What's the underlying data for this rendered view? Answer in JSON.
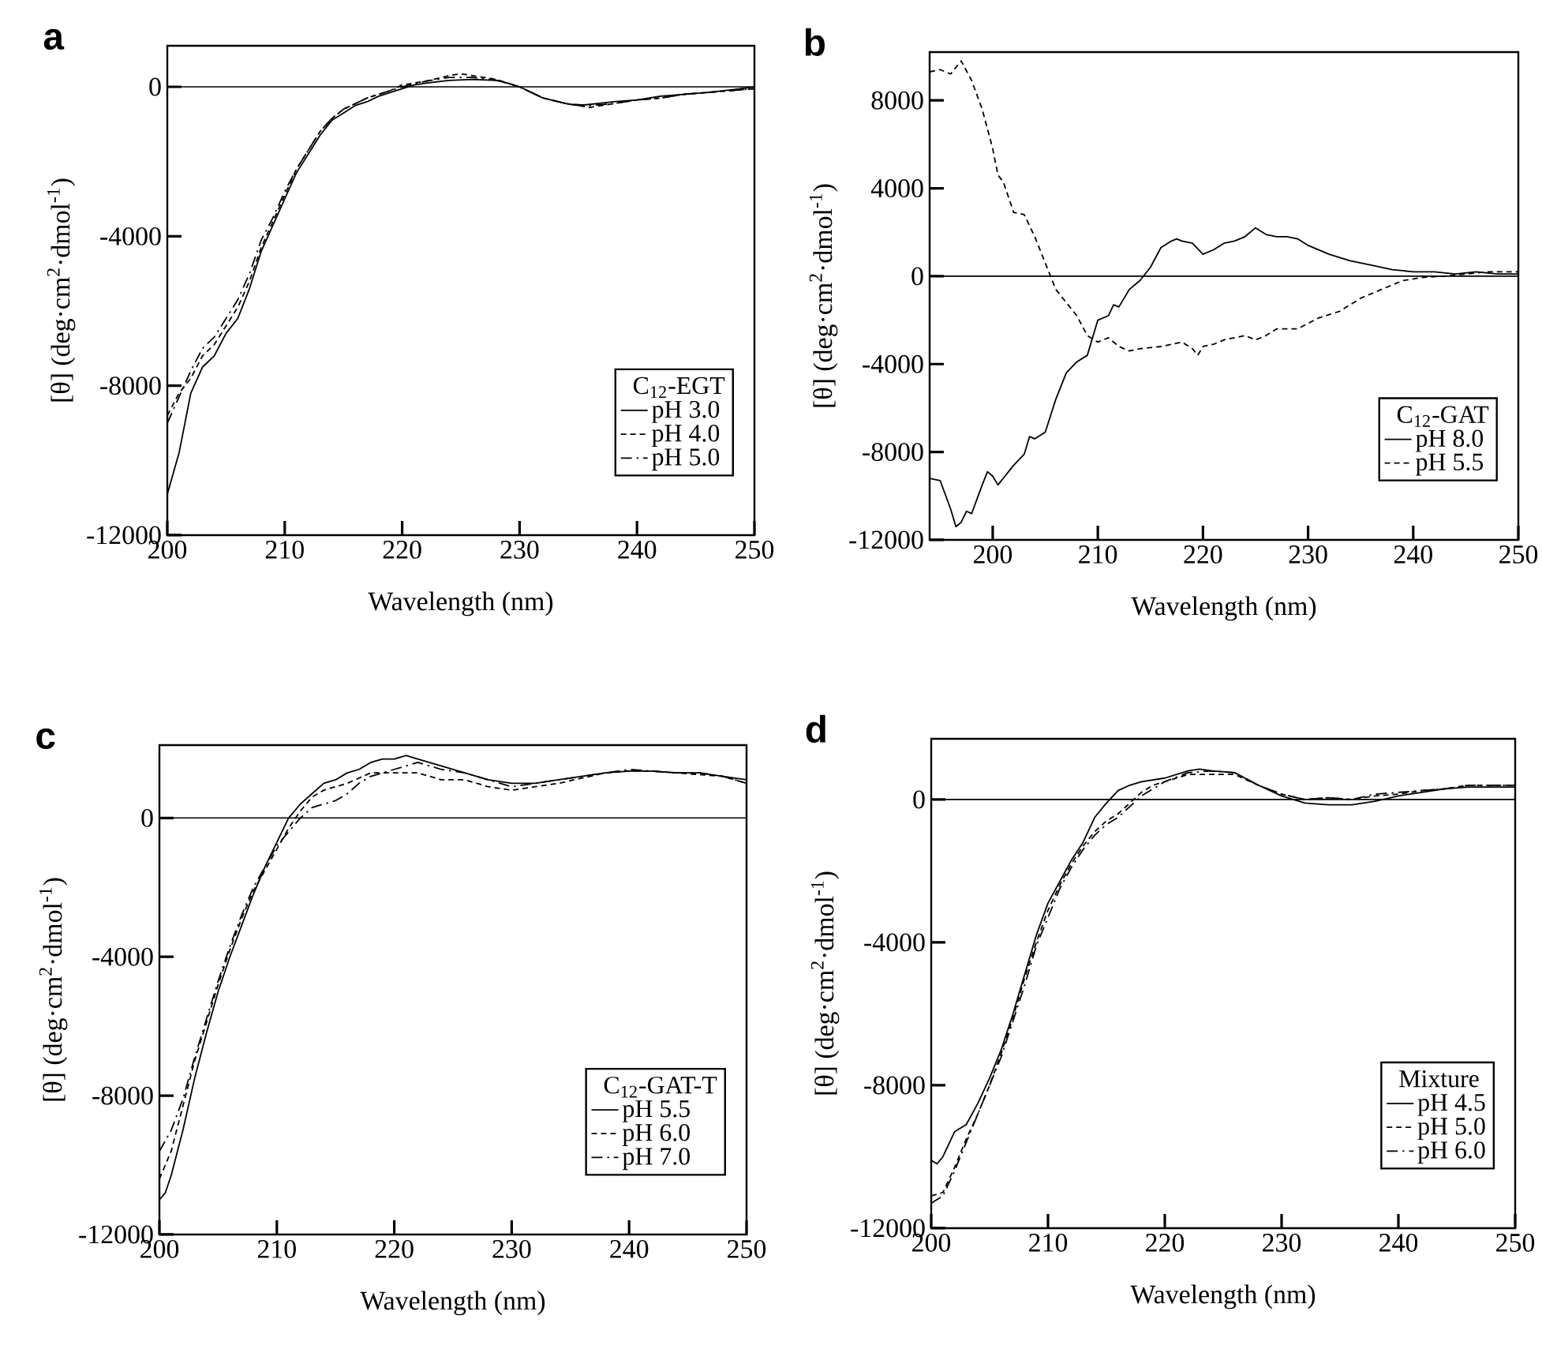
{
  "chart_data": [
    {
      "type": "line",
      "title": "a",
      "xlabel": "Wavelength (nm)",
      "ylabel": "[θ] (deg·cm$^{2}$·dmol$^{-1}$)",
      "legend_title": "C$_{12}$-EGT",
      "legend": "bottom right",
      "xlim": [
        200,
        250
      ],
      "ylim": [
        -12000,
        1100
      ],
      "xticks": [
        200,
        210,
        220,
        230,
        240,
        250
      ],
      "yticks": [
        -12000,
        -8000,
        -4000,
        0
      ],
      "ref_lines": [
        {
          "axis": "y",
          "value": 0
        }
      ],
      "series": [
        {
          "name": "pH 3.0",
          "color": "#000000",
          "line_style": "solid",
          "x": [
            200,
            201,
            202,
            203,
            204,
            205,
            206,
            207,
            208,
            209,
            210,
            211,
            212,
            213,
            214,
            215,
            216,
            217,
            218,
            219,
            220,
            221,
            222,
            224,
            226,
            228,
            229,
            230,
            231,
            232,
            234,
            235,
            236,
            238,
            240,
            242,
            244,
            246,
            248,
            250
          ],
          "values": [
            -10900,
            -9800,
            -8200,
            -7500,
            -7200,
            -6600,
            -6200,
            -5400,
            -4400,
            -3700,
            -3000,
            -2300,
            -1800,
            -1300,
            -900,
            -700,
            -500,
            -400,
            -250,
            -150,
            -50,
            50,
            100,
            170,
            200,
            170,
            100,
            0,
            -150,
            -300,
            -450,
            -500,
            -470,
            -400,
            -350,
            -250,
            -200,
            -150,
            -80,
            0
          ]
        },
        {
          "name": "pH 4.0",
          "color": "#000000",
          "line_style": "dashed",
          "x": [
            200,
            201,
            202,
            203,
            204,
            205,
            206,
            207,
            208,
            209,
            210,
            211,
            212,
            213,
            214,
            215,
            216,
            217,
            218,
            219,
            220,
            222,
            224,
            225,
            226,
            228,
            230,
            232,
            234,
            236,
            238,
            240,
            242,
            244,
            246,
            248,
            250
          ],
          "values": [
            -8800,
            -8200,
            -7800,
            -7200,
            -6900,
            -6400,
            -5900,
            -5200,
            -4300,
            -3600,
            -2900,
            -2200,
            -1700,
            -1200,
            -850,
            -600,
            -450,
            -300,
            -200,
            -100,
            50,
            150,
            300,
            350,
            300,
            200,
            0,
            -300,
            -450,
            -550,
            -450,
            -350,
            -300,
            -200,
            -150,
            -100,
            -50
          ]
        },
        {
          "name": "pH 5.0",
          "color": "#000000",
          "line_style": "dashdot",
          "x": [
            200,
            201,
            202,
            203,
            204,
            205,
            206,
            207,
            208,
            209,
            210,
            211,
            212,
            213,
            214,
            215,
            216,
            217,
            218,
            219,
            220,
            222,
            224,
            226,
            228,
            230,
            232,
            234,
            236,
            238,
            240,
            242,
            244,
            246,
            248,
            250
          ],
          "values": [
            -9000,
            -8300,
            -7600,
            -7000,
            -6700,
            -6200,
            -5700,
            -5000,
            -4100,
            -3500,
            -2800,
            -2200,
            -1700,
            -1200,
            -850,
            -600,
            -450,
            -300,
            -200,
            -100,
            0,
            150,
            250,
            250,
            180,
            0,
            -300,
            -450,
            -500,
            -450,
            -350,
            -300,
            -200,
            -150,
            -100,
            -50
          ]
        }
      ]
    },
    {
      "type": "line",
      "title": "b",
      "xlabel": "Wavelength (nm)",
      "ylabel": "[θ] (deg·cm$^{2}$·dmol$^{-1}$)",
      "legend_title": "C$_{12}$-GAT",
      "legend": "bottom right",
      "xlim": [
        194,
        250
      ],
      "ylim": [
        -12000,
        10200
      ],
      "xticks": [
        200,
        210,
        220,
        230,
        240,
        250
      ],
      "yticks": [
        -12000,
        -8000,
        -4000,
        0,
        4000,
        8000
      ],
      "ref_lines": [
        {
          "axis": "y",
          "value": 0
        }
      ],
      "series": [
        {
          "name": "pH 8.0",
          "color": "#000000",
          "line_style": "solid",
          "x": [
            194,
            195,
            196,
            196.5,
            197,
            197.5,
            198,
            199,
            199.5,
            200,
            200.5,
            201,
            202,
            203,
            203.5,
            204,
            205,
            206,
            207,
            208,
            209,
            210,
            211,
            211.5,
            212,
            213,
            214,
            215,
            216,
            217,
            217.5,
            218,
            219,
            220,
            221,
            222,
            223,
            224,
            225,
            226,
            227,
            228,
            229,
            230,
            232,
            234,
            236,
            238,
            240,
            242,
            244,
            246,
            248,
            250
          ],
          "values": [
            -9200,
            -9300,
            -10600,
            -11400,
            -11200,
            -10700,
            -10800,
            -9500,
            -8900,
            -9100,
            -9500,
            -9200,
            -8600,
            -8100,
            -7300,
            -7400,
            -7100,
            -5600,
            -4400,
            -3900,
            -3600,
            -2000,
            -1800,
            -1300,
            -1400,
            -600,
            -200,
            400,
            1300,
            1600,
            1700,
            1600,
            1500,
            1000,
            1200,
            1500,
            1600,
            1800,
            2200,
            1900,
            1800,
            1800,
            1700,
            1400,
            1000,
            700,
            500,
            300,
            200,
            200,
            100,
            200,
            100,
            100
          ]
        },
        {
          "name": "pH 5.5",
          "color": "#000000",
          "line_style": "dashed",
          "x": [
            194,
            195,
            196,
            197,
            198,
            199,
            200,
            200.5,
            201,
            202,
            203,
            204,
            205,
            206,
            207,
            208,
            209,
            210,
            211,
            212,
            213,
            214,
            216,
            218,
            219,
            219.5,
            220,
            221,
            222,
            224,
            225,
            226,
            227,
            229,
            231,
            233,
            235,
            237,
            239,
            241,
            243,
            245,
            247,
            250
          ],
          "values": [
            9300,
            9400,
            9200,
            9800,
            8900,
            7600,
            5800,
            4600,
            4300,
            2900,
            2800,
            1800,
            600,
            -600,
            -1200,
            -1800,
            -2700,
            -3000,
            -2800,
            -3200,
            -3400,
            -3300,
            -3200,
            -3000,
            -3300,
            -3600,
            -3200,
            -3100,
            -2900,
            -2700,
            -2900,
            -2700,
            -2400,
            -2400,
            -1900,
            -1600,
            -1000,
            -600,
            -200,
            -50,
            0,
            100,
            200,
            200
          ]
        }
      ]
    },
    {
      "type": "line",
      "title": "c",
      "xlabel": "Wavelength (nm)",
      "ylabel": "[θ] (deg·cm$^{2}$·dmol$^{-1}$)",
      "legend_title": "C$_{12}$-GAT-T",
      "legend": "bottom right",
      "xlim": [
        200,
        250
      ],
      "ylim": [
        -12000,
        2100
      ],
      "xticks": [
        200,
        210,
        220,
        230,
        240,
        250
      ],
      "yticks": [
        -12000,
        -8000,
        -4000,
        0
      ],
      "ref_lines": [
        {
          "axis": "y",
          "value": 0
        }
      ],
      "series": [
        {
          "name": "pH 5.5",
          "color": "#000000",
          "line_style": "solid",
          "x": [
            200,
            200.5,
            201,
            202,
            203,
            204,
            205,
            206,
            207,
            208,
            209,
            210,
            211,
            212,
            213,
            214,
            215,
            216,
            217,
            218,
            219,
            220,
            221,
            222,
            224,
            226,
            228,
            230,
            232,
            234,
            236,
            238,
            240,
            242,
            244,
            246,
            248,
            250
          ],
          "values": [
            -11000,
            -10800,
            -10300,
            -9000,
            -7500,
            -6200,
            -5000,
            -4000,
            -3100,
            -2200,
            -1400,
            -700,
            0,
            400,
            700,
            1000,
            1100,
            1300,
            1400,
            1600,
            1700,
            1700,
            1800,
            1700,
            1500,
            1300,
            1100,
            1000,
            1000,
            1100,
            1200,
            1300,
            1350,
            1350,
            1300,
            1300,
            1200,
            1100
          ]
        },
        {
          "name": "pH 6.0",
          "color": "#000000",
          "line_style": "dashed",
          "x": [
            200,
            201,
            202,
            203,
            204,
            205,
            206,
            207,
            208,
            209,
            210,
            211,
            212,
            213,
            214,
            216,
            218,
            220,
            222,
            224,
            226,
            228,
            230,
            232,
            234,
            236,
            238,
            240,
            242,
            244,
            246,
            248,
            250
          ],
          "values": [
            -10400,
            -9600,
            -8300,
            -7000,
            -5900,
            -4800,
            -3800,
            -2900,
            -2100,
            -1500,
            -900,
            -300,
            200,
            600,
            800,
            1000,
            1300,
            1300,
            1300,
            1100,
            1100,
            900,
            800,
            900,
            1000,
            1150,
            1300,
            1350,
            1350,
            1300,
            1250,
            1200,
            1000
          ]
        },
        {
          "name": "pH 7.0",
          "color": "#000000",
          "line_style": "dashdot",
          "x": [
            200,
            201,
            202,
            203,
            204,
            205,
            206,
            207,
            208,
            209,
            210,
            211,
            212,
            213,
            214,
            215,
            216,
            217,
            218,
            220,
            222,
            224,
            226,
            228,
            230,
            232,
            234,
            236,
            238,
            240,
            242,
            244,
            246,
            248,
            250
          ],
          "values": [
            -9600,
            -9000,
            -8100,
            -6900,
            -5800,
            -4700,
            -3700,
            -2800,
            -2000,
            -1400,
            -800,
            -400,
            0,
            300,
            400,
            500,
            700,
            1000,
            1200,
            1400,
            1600,
            1400,
            1300,
            1100,
            900,
            1000,
            1100,
            1200,
            1300,
            1400,
            1350,
            1300,
            1300,
            1200,
            1000
          ]
        }
      ]
    },
    {
      "type": "line",
      "title": "d",
      "xlabel": "Wavelength (nm)",
      "ylabel": "[θ] (deg·cm$^{2}$·dmol$^{-1}$)",
      "legend_title": "Mixture",
      "legend": "bottom right",
      "xlim": [
        200,
        250
      ],
      "ylim": [
        -12000,
        1700
      ],
      "xticks": [
        200,
        210,
        220,
        230,
        240,
        250
      ],
      "yticks": [
        -12000,
        -8000,
        -4000,
        0
      ],
      "ref_lines": [
        {
          "axis": "y",
          "value": 0
        }
      ],
      "series": [
        {
          "name": "pH 4.5",
          "color": "#000000",
          "line_style": "solid",
          "x": [
            200,
            200.5,
            201,
            202,
            203,
            204,
            205,
            206,
            207,
            208,
            209,
            210,
            211,
            212,
            213,
            214,
            215,
            216,
            217,
            218,
            220,
            222,
            223,
            224,
            226,
            228,
            230,
            232,
            234,
            236,
            238,
            240,
            242,
            244,
            246,
            248,
            250
          ],
          "values": [
            -10100,
            -10200,
            -10000,
            -9300,
            -9100,
            -8500,
            -7800,
            -7000,
            -6000,
            -4900,
            -3800,
            -2900,
            -2300,
            -1700,
            -1200,
            -500,
            -100,
            250,
            400,
            500,
            600,
            800,
            850,
            800,
            750,
            400,
            100,
            -100,
            -150,
            -150,
            -50,
            100,
            200,
            300,
            350,
            350,
            350
          ]
        },
        {
          "name": "pH 5.0",
          "color": "#000000",
          "line_style": "dashed",
          "x": [
            200,
            201,
            202,
            203,
            204,
            205,
            206,
            207,
            208,
            209,
            210,
            211,
            212,
            213,
            214,
            215,
            216,
            217,
            218,
            219,
            220,
            222,
            224,
            226,
            228,
            230,
            232,
            234,
            236,
            238,
            240,
            242,
            244,
            246,
            248,
            250
          ],
          "values": [
            -11100,
            -11000,
            -10300,
            -9500,
            -8800,
            -8000,
            -7100,
            -6100,
            -5000,
            -4000,
            -3100,
            -2400,
            -1800,
            -1300,
            -900,
            -600,
            -400,
            -100,
            200,
            400,
            500,
            700,
            700,
            700,
            400,
            150,
            0,
            50,
            0,
            100,
            150,
            250,
            300,
            400,
            400,
            400
          ]
        },
        {
          "name": "pH 6.0",
          "color": "#000000",
          "line_style": "dashdot",
          "x": [
            200,
            201,
            202,
            203,
            204,
            205,
            206,
            207,
            208,
            209,
            210,
            211,
            212,
            213,
            214,
            215,
            216,
            217,
            218,
            219,
            220,
            222,
            224,
            226,
            228,
            230,
            232,
            234,
            236,
            238,
            240,
            242,
            244,
            246,
            248,
            250
          ],
          "values": [
            -11300,
            -11100,
            -10400,
            -9600,
            -8800,
            -8000,
            -7200,
            -6200,
            -5200,
            -4100,
            -3300,
            -2500,
            -1900,
            -1400,
            -1000,
            -700,
            -500,
            -200,
            100,
            300,
            500,
            750,
            800,
            750,
            400,
            150,
            0,
            50,
            0,
            150,
            200,
            250,
            300,
            400,
            400,
            400
          ]
        }
      ]
    }
  ]
}
